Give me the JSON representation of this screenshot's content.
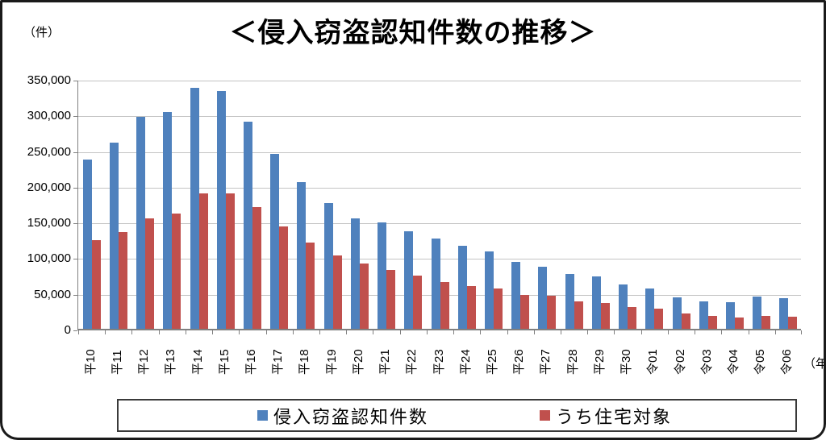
{
  "page": {
    "title": "＜侵入窃盗認知件数の推移＞",
    "y_unit_label": "（件）",
    "x_unit_label": "（年）"
  },
  "colors": {
    "series1": "#4F81BD",
    "series2": "#C0504D",
    "gridline": "#C3C3C3",
    "axis": "#808080",
    "frame_border": "#1A1A1A"
  },
  "chart_data": {
    "type": "bar",
    "title": "＜侵入窃盗認知件数の推移＞",
    "ylabel": "（件）",
    "xlabel": "（年）",
    "categories": [
      "平10",
      "平11",
      "平12",
      "平13",
      "平14",
      "平15",
      "平16",
      "平17",
      "平18",
      "平19",
      "平20",
      "平21",
      "平22",
      "平23",
      "平24",
      "平25",
      "平26",
      "平27",
      "平28",
      "平29",
      "平30",
      "令01",
      "令02",
      "令03",
      "令04",
      "令05",
      "令06"
    ],
    "series": [
      {
        "name": "侵入窃盗認知件数",
        "color": "#4F81BD",
        "values": [
          237000,
          261000,
          297000,
          304000,
          338000,
          333000,
          290000,
          245000,
          205000,
          176000,
          155000,
          149000,
          137000,
          126000,
          116000,
          108000,
          94000,
          87000,
          77000,
          73000,
          62000,
          57000,
          44000,
          38000,
          37000,
          45000,
          43000
        ]
      },
      {
        "name": "うち住宅対象",
        "color": "#C0504D",
        "values": [
          124000,
          135000,
          155000,
          162000,
          190000,
          190000,
          171000,
          143000,
          121000,
          103000,
          91000,
          82000,
          75000,
          66000,
          60000,
          57000,
          48000,
          46000,
          38000,
          36000,
          31000,
          28000,
          21000,
          18000,
          16000,
          18000,
          17000
        ]
      }
    ],
    "ylim": [
      0,
      350000
    ],
    "ytick_interval": 50000,
    "ytick_labels": [
      "350,000",
      "300,000",
      "250,000",
      "200,000",
      "150,000",
      "100,000",
      "50,000",
      "0"
    ],
    "grid": true,
    "legend_position": "bottom",
    "x_tick_label_rotation": -90
  }
}
